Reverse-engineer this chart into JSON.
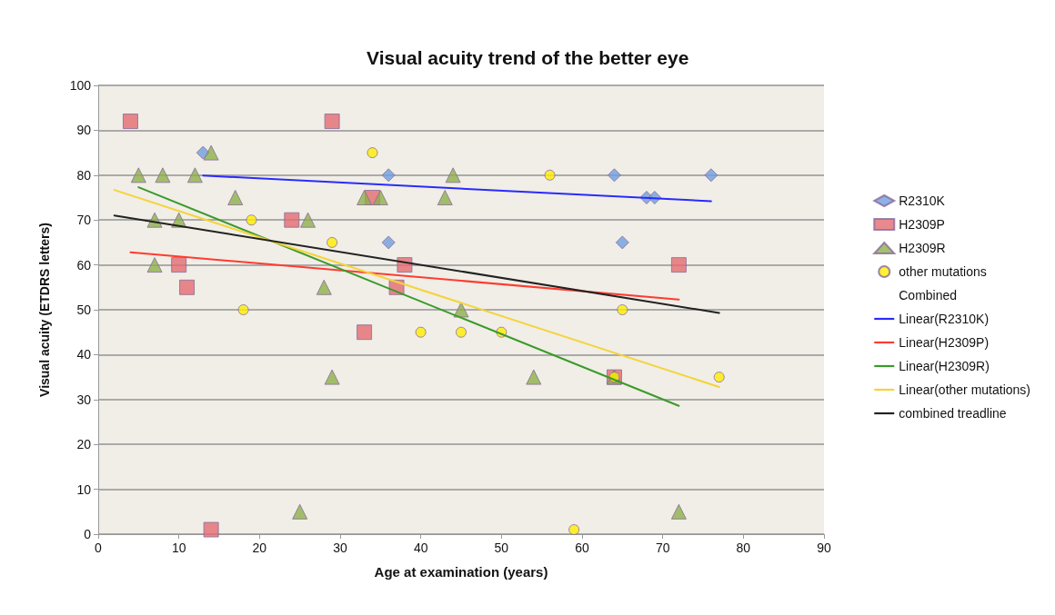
{
  "chart_data": {
    "type": "scatter",
    "title": "Visual acuity trend of the better eye",
    "xlabel": "Age at examination (years)",
    "ylabel": "Visual acuity (ETDRS letters)",
    "xlim": [
      0,
      90
    ],
    "xticks": [
      0,
      10,
      20,
      30,
      40,
      50,
      60,
      70,
      80,
      90
    ],
    "ylim": [
      0,
      100
    ],
    "yticks": [
      0,
      10,
      20,
      30,
      40,
      50,
      60,
      70,
      80,
      90,
      100
    ],
    "grid": "y",
    "legend": "right",
    "series": [
      {
        "name": "R2310K",
        "marker": "diamond",
        "color": "#6f9fe0",
        "x": [
          13,
          36,
          36,
          64,
          65,
          68,
          69,
          76
        ],
        "values": [
          85,
          80,
          65,
          80,
          65,
          75,
          75,
          80
        ]
      },
      {
        "name": "H2309P",
        "marker": "square",
        "color": "#e46c72",
        "x": [
          4,
          29,
          34,
          24,
          10,
          11,
          38,
          37,
          33,
          14,
          64,
          72
        ],
        "values": [
          92,
          92,
          75,
          70,
          60,
          55,
          60,
          55,
          45,
          1,
          35,
          60
        ]
      },
      {
        "name": "H2309R",
        "marker": "triangle",
        "color": "#8db04a",
        "x": [
          14,
          5,
          8,
          12,
          17,
          7,
          10,
          26,
          7,
          33,
          35,
          43,
          44,
          28,
          29,
          45,
          54,
          64,
          25,
          72
        ],
        "values": [
          85,
          80,
          80,
          80,
          75,
          70,
          70,
          70,
          60,
          75,
          75,
          75,
          80,
          55,
          35,
          50,
          35,
          35,
          5,
          5
        ]
      },
      {
        "name": "other mutations",
        "marker": "circle",
        "color": "#ffee00",
        "x": [
          34,
          56,
          19,
          29,
          18,
          40,
          45,
          50,
          65,
          64,
          77,
          59
        ],
        "values": [
          85,
          80,
          70,
          65,
          50,
          45,
          45,
          45,
          50,
          35,
          35,
          1
        ]
      },
      {
        "name": "Combined",
        "marker": "none"
      },
      {
        "name": "Linear(R2310K)",
        "type": "line",
        "marker": "none",
        "color": "#2a2aff",
        "x": [
          13,
          76
        ],
        "values": [
          79.9,
          74.2
        ]
      },
      {
        "name": "Linear(H2309P)",
        "type": "line",
        "marker": "none",
        "color": "#ff3b30",
        "x": [
          4,
          72
        ],
        "values": [
          62.8,
          52.3
        ]
      },
      {
        "name": "Linear(H2309R)",
        "type": "line",
        "marker": "none",
        "color": "#3a9a2a",
        "x": [
          5,
          72
        ],
        "values": [
          77.3,
          28.6
        ]
      },
      {
        "name": "Linear(other mutations)",
        "type": "line",
        "marker": "none",
        "color": "#f5d33a",
        "x": [
          2,
          77
        ],
        "values": [
          76.7,
          32.8
        ]
      },
      {
        "name": "combined treadline",
        "type": "line",
        "marker": "none",
        "color": "#222222",
        "x": [
          2,
          77
        ],
        "values": [
          71,
          49.3
        ]
      }
    ]
  }
}
